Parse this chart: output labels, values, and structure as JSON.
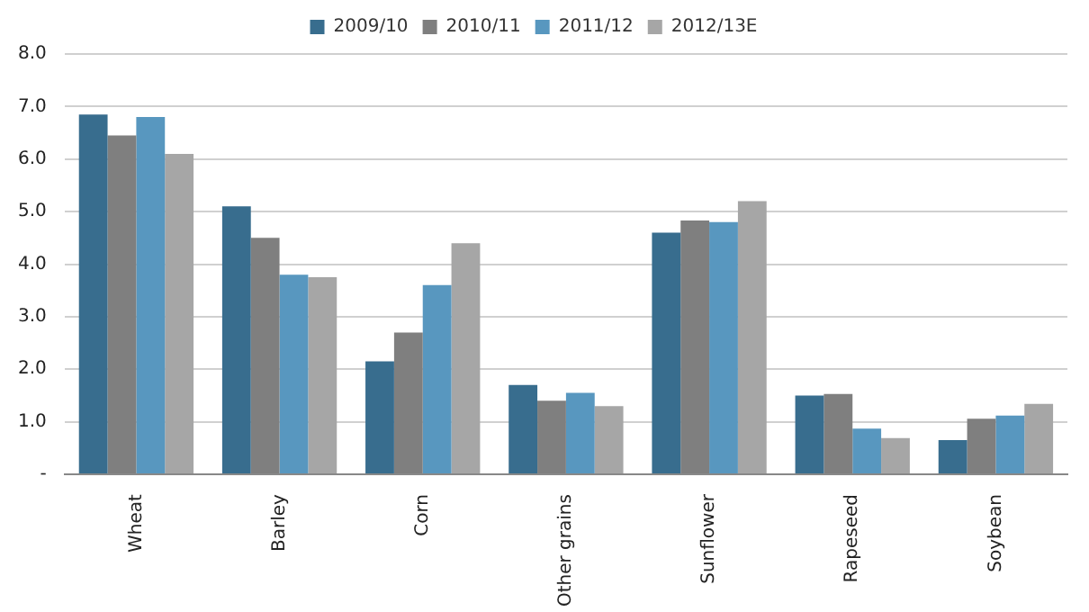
{
  "chart_data": {
    "type": "bar",
    "categories": [
      "Wheat",
      "Barley",
      "Corn",
      "Other grains",
      "Sunflower",
      "Rapeseed",
      "Soybean"
    ],
    "series": [
      {
        "name": "2009/10",
        "color": "#386d8e",
        "values": [
          6.85,
          5.1,
          2.15,
          1.7,
          4.6,
          1.5,
          0.65
        ]
      },
      {
        "name": "2010/11",
        "color": "#7f7f7f",
        "values": [
          6.45,
          4.5,
          2.7,
          1.4,
          4.83,
          1.53,
          1.06
        ]
      },
      {
        "name": "2011/12",
        "color": "#5897bf",
        "values": [
          6.8,
          3.8,
          3.6,
          1.55,
          4.8,
          0.87,
          1.12
        ]
      },
      {
        "name": "2012/13E",
        "color": "#a6a6a6",
        "values": [
          6.1,
          3.75,
          4.4,
          1.3,
          5.2,
          0.69,
          1.34
        ]
      }
    ],
    "ylim": [
      0,
      8
    ],
    "yticks": [
      {
        "value": 0,
        "label": "-"
      },
      {
        "value": 1,
        "label": "1.0"
      },
      {
        "value": 2,
        "label": "2.0"
      },
      {
        "value": 3,
        "label": "3.0"
      },
      {
        "value": 4,
        "label": "4.0"
      },
      {
        "value": 5,
        "label": "5.0"
      },
      {
        "value": 6,
        "label": "6.0"
      },
      {
        "value": 7,
        "label": "7.0"
      },
      {
        "value": 8,
        "label": "8.0"
      }
    ],
    "grid": "y",
    "legend": "top"
  }
}
